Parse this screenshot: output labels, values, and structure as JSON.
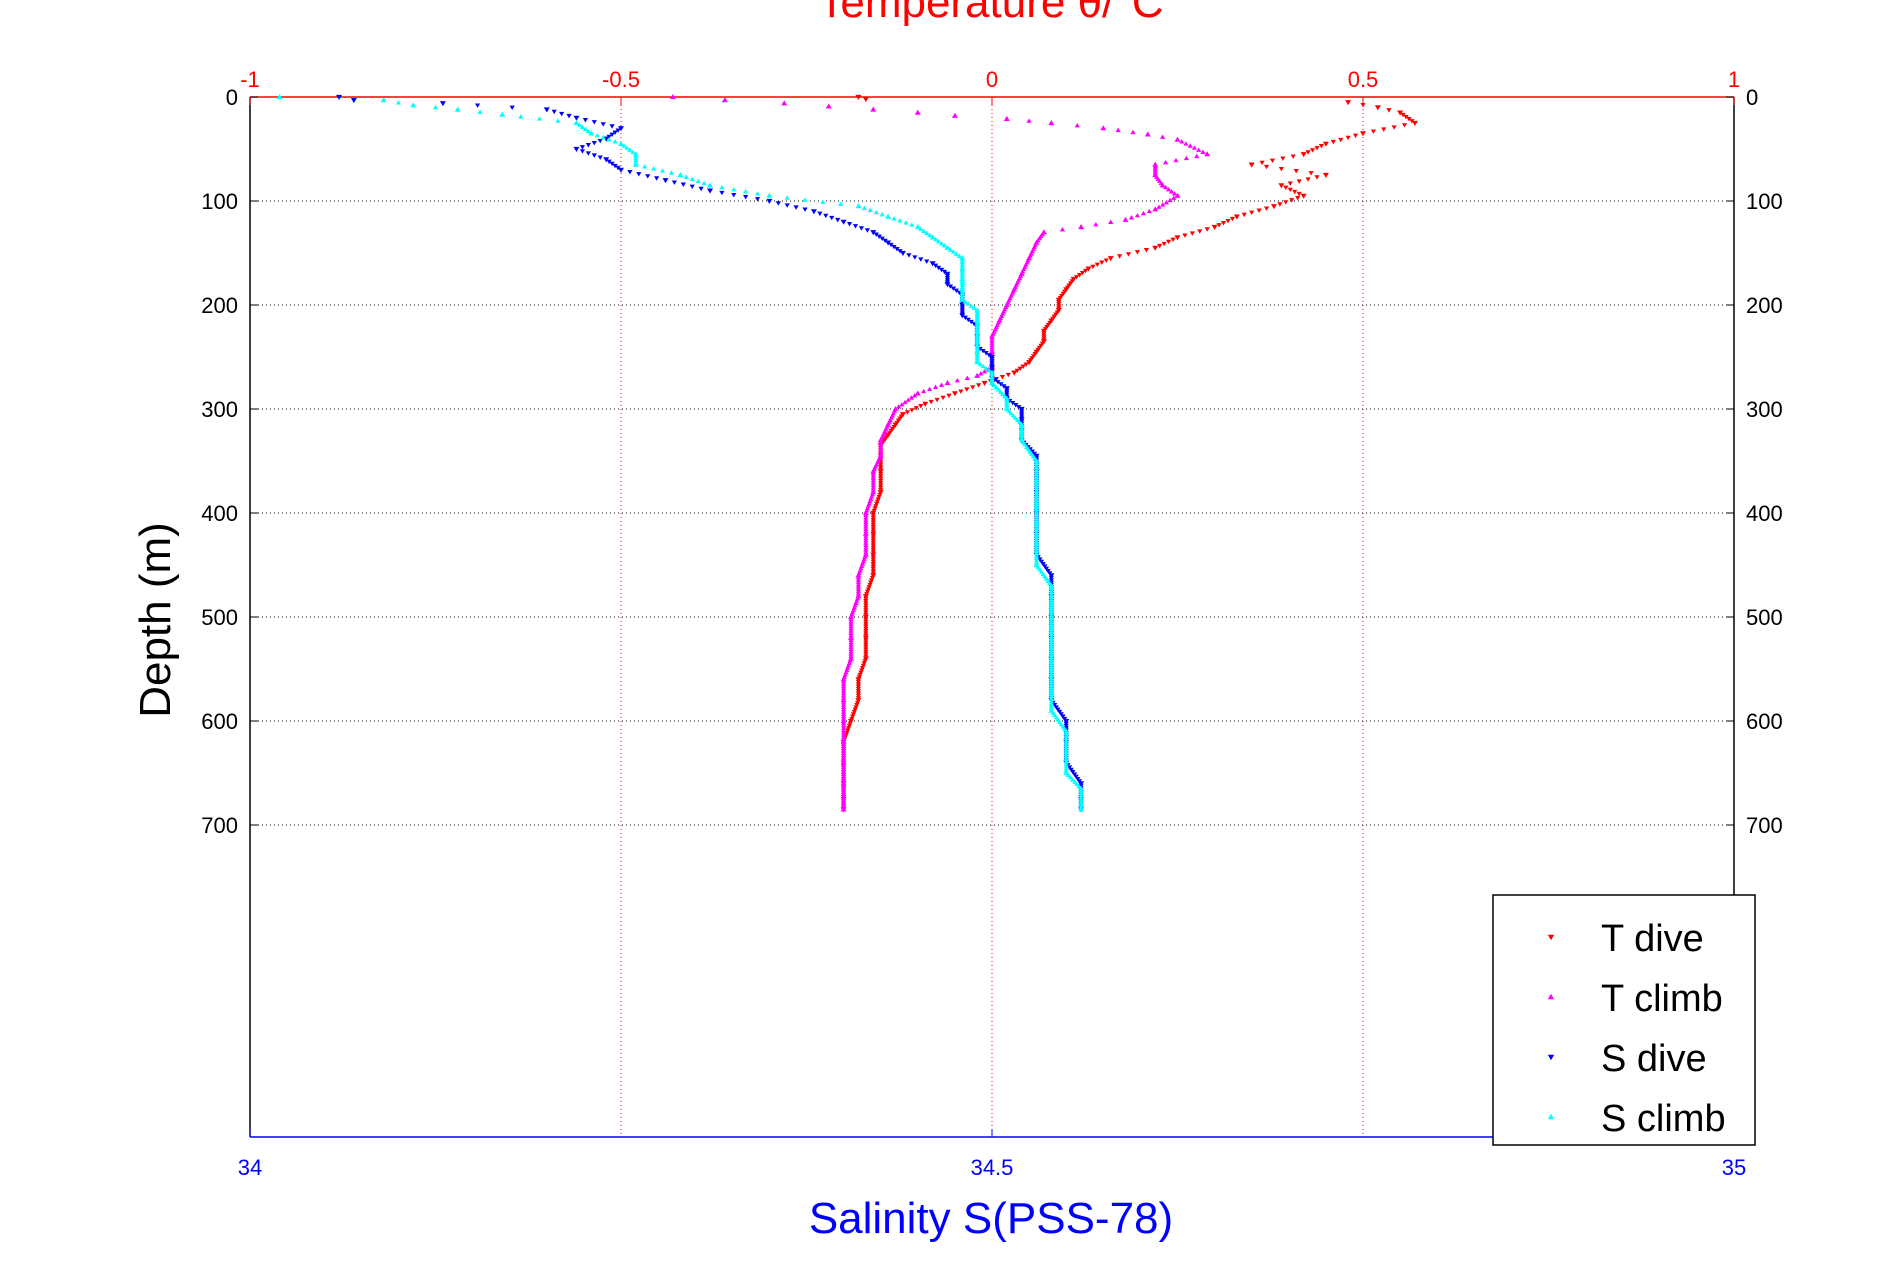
{
  "chart_data": {
    "type": "scatter",
    "title": "Temperature θ/°C",
    "xlabel": "Salinity S(PSS-78)",
    "ylabel": "Depth (m)",
    "temperature_axis": {
      "lim": [
        -1,
        1
      ],
      "ticks": [
        -1,
        -0.5,
        0,
        0.5,
        1
      ],
      "tick_labels": [
        "-1",
        "-0.5",
        "0",
        "0.5",
        "1"
      ],
      "color": "#ff0000"
    },
    "salinity_axis": {
      "lim": [
        34,
        35
      ],
      "ticks": [
        34,
        34.5,
        35
      ],
      "tick_labels": [
        "34",
        "34.5",
        "35"
      ],
      "color": "#0000ff"
    },
    "depth_axis": {
      "lim": [
        0,
        1000
      ],
      "reversed": true,
      "ticks": [
        0,
        100,
        200,
        300,
        400,
        500,
        600,
        700
      ],
      "tick_labels": [
        "0",
        "100",
        "200",
        "300",
        "400",
        "500",
        "600",
        "700"
      ]
    },
    "grid": true,
    "legend_position": "bottom-right",
    "series": [
      {
        "name": "T dive",
        "axis": "temperature",
        "color": "#ff0000",
        "marker": "triangle-down",
        "points": [
          [
            -0.18,
            0
          ],
          [
            -0.17,
            2
          ],
          [
            0.48,
            5
          ],
          [
            0.52,
            10
          ],
          [
            0.55,
            15
          ],
          [
            0.57,
            25
          ],
          [
            0.5,
            35
          ],
          [
            0.45,
            45
          ],
          [
            0.42,
            55
          ],
          [
            0.35,
            65
          ],
          [
            0.45,
            75
          ],
          [
            0.39,
            85
          ],
          [
            0.42,
            95
          ],
          [
            0.38,
            105
          ],
          [
            0.33,
            115
          ],
          [
            0.3,
            125
          ],
          [
            0.25,
            135
          ],
          [
            0.22,
            145
          ],
          [
            0.16,
            155
          ],
          [
            0.13,
            165
          ],
          [
            0.11,
            175
          ],
          [
            0.1,
            185
          ],
          [
            0.09,
            195
          ],
          [
            0.09,
            205
          ],
          [
            0.08,
            215
          ],
          [
            0.07,
            225
          ],
          [
            0.07,
            235
          ],
          [
            0.06,
            245
          ],
          [
            0.05,
            255
          ],
          [
            0.03,
            265
          ],
          [
            -0.01,
            275
          ],
          [
            -0.05,
            285
          ],
          [
            -0.09,
            295
          ],
          [
            -0.12,
            305
          ],
          [
            -0.13,
            315
          ],
          [
            -0.14,
            325
          ],
          [
            -0.15,
            335
          ],
          [
            -0.15,
            345
          ],
          [
            -0.15,
            360
          ],
          [
            -0.15,
            380
          ],
          [
            -0.16,
            400
          ],
          [
            -0.16,
            420
          ],
          [
            -0.16,
            440
          ],
          [
            -0.16,
            460
          ],
          [
            -0.17,
            480
          ],
          [
            -0.17,
            500
          ],
          [
            -0.17,
            520
          ],
          [
            -0.17,
            540
          ],
          [
            -0.18,
            560
          ],
          [
            -0.18,
            580
          ],
          [
            -0.19,
            600
          ],
          [
            -0.2,
            620
          ],
          [
            -0.2,
            640
          ],
          [
            -0.2,
            660
          ],
          [
            -0.2,
            675
          ],
          [
            -0.2,
            685
          ]
        ]
      },
      {
        "name": "T climb",
        "axis": "temperature",
        "color": "#ff00ff",
        "marker": "triangle-up",
        "points": [
          [
            -0.43,
            0
          ],
          [
            -0.36,
            3
          ],
          [
            -0.28,
            6
          ],
          [
            -0.22,
            9
          ],
          [
            -0.16,
            12
          ],
          [
            -0.1,
            15
          ],
          [
            -0.05,
            18
          ],
          [
            0.02,
            21
          ],
          [
            0.08,
            25
          ],
          [
            0.15,
            30
          ],
          [
            0.21,
            36
          ],
          [
            0.25,
            41
          ],
          [
            0.29,
            55
          ],
          [
            0.22,
            65
          ],
          [
            0.22,
            75
          ],
          [
            0.23,
            85
          ],
          [
            0.25,
            95
          ],
          [
            0.22,
            108
          ],
          [
            0.18,
            118
          ],
          [
            0.12,
            125
          ],
          [
            0.07,
            130
          ],
          [
            0.06,
            140
          ],
          [
            0.05,
            155
          ],
          [
            0.04,
            170
          ],
          [
            0.03,
            185
          ],
          [
            0.02,
            200
          ],
          [
            0.01,
            215
          ],
          [
            0.0,
            230
          ],
          [
            0.0,
            245
          ],
          [
            0.0,
            260
          ],
          [
            -0.02,
            268
          ],
          [
            -0.06,
            275
          ],
          [
            -0.1,
            285
          ],
          [
            -0.13,
            300
          ],
          [
            -0.14,
            315
          ],
          [
            -0.15,
            330
          ],
          [
            -0.15,
            345
          ],
          [
            -0.16,
            360
          ],
          [
            -0.16,
            380
          ],
          [
            -0.17,
            400
          ],
          [
            -0.17,
            420
          ],
          [
            -0.17,
            440
          ],
          [
            -0.18,
            460
          ],
          [
            -0.18,
            480
          ],
          [
            -0.19,
            500
          ],
          [
            -0.19,
            520
          ],
          [
            -0.19,
            540
          ],
          [
            -0.2,
            560
          ],
          [
            -0.2,
            580
          ],
          [
            -0.2,
            600
          ],
          [
            -0.2,
            620
          ],
          [
            -0.2,
            640
          ],
          [
            -0.2,
            660
          ],
          [
            -0.2,
            685
          ]
        ]
      },
      {
        "name": "S dive",
        "axis": "salinity",
        "color": "#0000ff",
        "marker": "triangle-down",
        "points": [
          [
            34.06,
            0
          ],
          [
            34.07,
            3
          ],
          [
            34.13,
            6
          ],
          [
            34.2,
            12
          ],
          [
            34.22,
            20
          ],
          [
            34.25,
            30
          ],
          [
            34.24,
            40
          ],
          [
            34.22,
            50
          ],
          [
            34.24,
            60
          ],
          [
            34.25,
            70
          ],
          [
            34.28,
            80
          ],
          [
            34.31,
            90
          ],
          [
            34.35,
            100
          ],
          [
            34.38,
            110
          ],
          [
            34.4,
            120
          ],
          [
            34.42,
            130
          ],
          [
            34.43,
            140
          ],
          [
            34.44,
            150
          ],
          [
            34.46,
            160
          ],
          [
            34.47,
            170
          ],
          [
            34.47,
            180
          ],
          [
            34.48,
            190
          ],
          [
            34.48,
            200
          ],
          [
            34.48,
            210
          ],
          [
            34.49,
            220
          ],
          [
            34.49,
            230
          ],
          [
            34.49,
            240
          ],
          [
            34.5,
            250
          ],
          [
            34.5,
            260
          ],
          [
            34.5,
            270
          ],
          [
            34.51,
            280
          ],
          [
            34.51,
            290
          ],
          [
            34.52,
            300
          ],
          [
            34.52,
            310
          ],
          [
            34.52,
            320
          ],
          [
            34.52,
            330
          ],
          [
            34.53,
            345
          ],
          [
            34.53,
            360
          ],
          [
            34.53,
            380
          ],
          [
            34.53,
            400
          ],
          [
            34.53,
            420
          ],
          [
            34.53,
            440
          ],
          [
            34.54,
            460
          ],
          [
            34.54,
            480
          ],
          [
            34.54,
            500
          ],
          [
            34.54,
            520
          ],
          [
            34.54,
            540
          ],
          [
            34.54,
            560
          ],
          [
            34.54,
            580
          ],
          [
            34.55,
            600
          ],
          [
            34.55,
            620
          ],
          [
            34.55,
            640
          ],
          [
            34.56,
            660
          ],
          [
            34.56,
            675
          ],
          [
            34.56,
            685
          ]
        ]
      },
      {
        "name": "S climb",
        "axis": "salinity",
        "color": "#00ffff",
        "marker": "triangle-up",
        "points": [
          [
            34.02,
            0
          ],
          [
            34.09,
            3
          ],
          [
            34.11,
            8
          ],
          [
            34.14,
            12
          ],
          [
            34.17,
            17
          ],
          [
            34.22,
            25
          ],
          [
            34.23,
            35
          ],
          [
            34.25,
            45
          ],
          [
            34.26,
            55
          ],
          [
            34.26,
            65
          ],
          [
            34.29,
            75
          ],
          [
            34.31,
            85
          ],
          [
            34.35,
            95
          ],
          [
            34.41,
            105
          ],
          [
            34.43,
            115
          ],
          [
            34.45,
            125
          ],
          [
            34.46,
            135
          ],
          [
            34.47,
            145
          ],
          [
            34.48,
            155
          ],
          [
            34.48,
            165
          ],
          [
            34.48,
            175
          ],
          [
            34.48,
            185
          ],
          [
            34.48,
            195
          ],
          [
            34.49,
            205
          ],
          [
            34.49,
            215
          ],
          [
            34.49,
            225
          ],
          [
            34.49,
            235
          ],
          [
            34.49,
            245
          ],
          [
            34.49,
            255
          ],
          [
            34.5,
            265
          ],
          [
            34.5,
            275
          ],
          [
            34.51,
            290
          ],
          [
            34.51,
            300
          ],
          [
            34.52,
            315
          ],
          [
            34.52,
            330
          ],
          [
            34.53,
            350
          ],
          [
            34.53,
            370
          ],
          [
            34.53,
            390
          ],
          [
            34.53,
            410
          ],
          [
            34.53,
            430
          ],
          [
            34.53,
            450
          ],
          [
            34.54,
            470
          ],
          [
            34.54,
            490
          ],
          [
            34.54,
            510
          ],
          [
            34.54,
            530
          ],
          [
            34.54,
            550
          ],
          [
            34.54,
            570
          ],
          [
            34.54,
            590
          ],
          [
            34.55,
            610
          ],
          [
            34.55,
            630
          ],
          [
            34.55,
            650
          ],
          [
            34.56,
            665
          ],
          [
            34.56,
            680
          ],
          [
            34.56,
            685
          ]
        ]
      }
    ]
  }
}
